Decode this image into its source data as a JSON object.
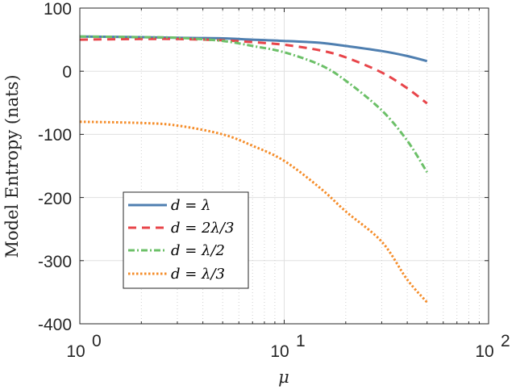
{
  "chart_data": {
    "type": "line",
    "title": "",
    "xlabel": "μ",
    "ylabel": "Model Entropy (nats)",
    "xscale": "log",
    "xlim": [
      1,
      100
    ],
    "ylim": [
      -400,
      100
    ],
    "x_ticks": [
      "10^0",
      "10^1",
      "10^2"
    ],
    "y_ticks": [
      "100",
      "0",
      "-100",
      "-200",
      "-300",
      "-400"
    ],
    "grid": true,
    "legend_position": "lower left",
    "x": [
      1,
      2,
      3,
      5,
      7,
      10,
      15,
      20,
      30,
      40,
      50
    ],
    "series": [
      {
        "name": "d = λ",
        "style": "solid",
        "color": "#4f7fb0",
        "values": [
          55,
          54,
          53,
          52,
          50,
          48,
          45,
          40,
          32,
          24,
          16
        ]
      },
      {
        "name": "d = 2λ/3",
        "style": "dashed",
        "color": "#e8454a",
        "values": [
          50,
          51,
          51,
          49,
          46,
          42,
          33,
          22,
          -2,
          -27,
          -51
        ]
      },
      {
        "name": "d = λ/2",
        "style": "dashdot",
        "color": "#6cc068",
        "values": [
          55,
          54,
          53,
          48,
          40,
          30,
          10,
          -15,
          -62,
          -110,
          -160
        ]
      },
      {
        "name": "d = λ/3",
        "style": "dotted",
        "color": "#f58d2a",
        "values": [
          -80,
          -82,
          -86,
          -100,
          -118,
          -142,
          -185,
          -222,
          -270,
          -330,
          -366
        ]
      }
    ]
  },
  "axes": {
    "xlabel": "μ",
    "ylabel": "Model Entropy (nats)",
    "yticks": [
      "100",
      "0",
      "-100",
      "-200",
      "-300",
      "-400"
    ],
    "xticks": [
      {
        "base": "10",
        "exp": "0"
      },
      {
        "base": "10",
        "exp": "1"
      },
      {
        "base": "10",
        "exp": "2"
      }
    ]
  },
  "legend": [
    {
      "label": "d = λ"
    },
    {
      "label": "d = 2λ/3"
    },
    {
      "label": "d = λ/2"
    },
    {
      "label": "d = λ/3"
    }
  ]
}
